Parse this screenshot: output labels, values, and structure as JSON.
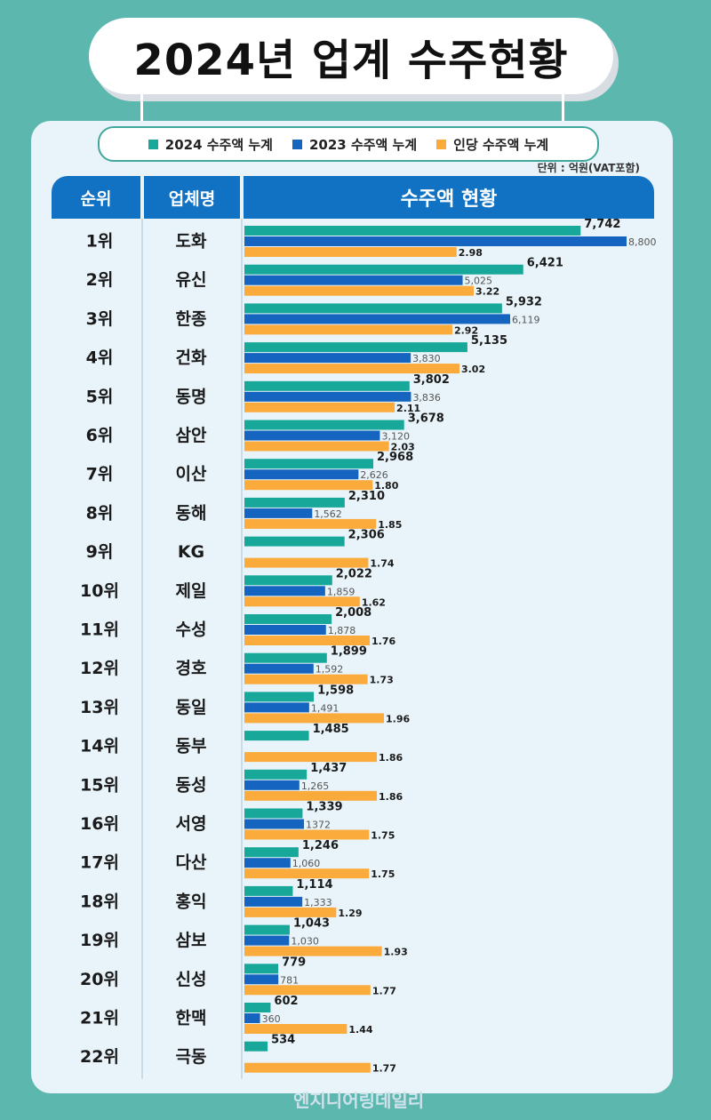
{
  "title": "2024년 업계 수주현황",
  "legend": {
    "s2024": "2024 수주액 누계",
    "s2023": "2023 수주액 누계",
    "per": "인당 수주액 누계"
  },
  "unit_label": "단위 : 억원(VAT포함)",
  "headers": {
    "rank": "순위",
    "name": "업체명",
    "amount": "수주액 현황"
  },
  "watermark": "엔지니어링데일리",
  "colors": {
    "s2024": "#17a89a",
    "s2023": "#1565c0",
    "per": "#fbab3c",
    "header": "#1172c4",
    "background": "#5cb8ae",
    "panel": "#e8f4fa"
  },
  "chart_data": {
    "type": "bar",
    "orientation": "horizontal",
    "title": "수주액 현황",
    "unit": "억원(VAT포함)",
    "categories": [
      "도화",
      "유신",
      "한종",
      "건화",
      "동명",
      "삼안",
      "이산",
      "동해",
      "KG",
      "제일",
      "수성",
      "경호",
      "동일",
      "동부",
      "동성",
      "서영",
      "다산",
      "홍익",
      "삼보",
      "신성",
      "한맥",
      "극동"
    ],
    "ranks": [
      "1위",
      "2위",
      "3위",
      "4위",
      "5위",
      "6위",
      "7위",
      "8위",
      "9위",
      "10위",
      "11위",
      "12위",
      "13위",
      "14위",
      "15위",
      "16위",
      "17위",
      "18위",
      "19위",
      "20위",
      "21위",
      "22위"
    ],
    "series": [
      {
        "name": "2024 수주액 누계",
        "values": [
          7742,
          6421,
          5932,
          5135,
          3802,
          3678,
          2968,
          2310,
          2306,
          2022,
          2008,
          1899,
          1598,
          1485,
          1437,
          1339,
          1246,
          1114,
          1043,
          779,
          602,
          534
        ],
        "labels": [
          "7,742",
          "6,421",
          "5,932",
          "5,135",
          "3,802",
          "3,678",
          "2,968",
          "2,310",
          "2,306",
          "2,022",
          "2,008",
          "1,899",
          "1,598",
          "1,485",
          "1,437",
          "1,339",
          "1,246",
          "1,114",
          "1,043",
          "779",
          "602",
          "534"
        ]
      },
      {
        "name": "2023 수주액 누계",
        "values": [
          8800,
          5025,
          6119,
          3830,
          3836,
          3120,
          2626,
          1562,
          null,
          1859,
          1878,
          1592,
          1491,
          null,
          1265,
          1372,
          1060,
          1333,
          1030,
          781,
          360,
          null
        ],
        "labels": [
          "8,800",
          "5,025",
          "6,119",
          "3,830",
          "3,836",
          "3,120",
          "2,626",
          "1,562",
          "",
          "1,859",
          "1,878",
          "1,592",
          "1,491",
          "",
          "1,265",
          "1372",
          "1,060",
          "1,333",
          "1,030",
          "781",
          "360",
          ""
        ]
      },
      {
        "name": "인당 수주액 누계",
        "values": [
          2.98,
          3.22,
          2.92,
          3.02,
          2.11,
          2.03,
          1.8,
          1.85,
          1.74,
          1.62,
          1.76,
          1.73,
          1.96,
          1.86,
          1.86,
          1.75,
          1.75,
          1.29,
          1.93,
          1.77,
          1.44,
          1.77
        ],
        "labels": [
          "2.98",
          "3.22",
          "2.92",
          "3.02",
          "2.11",
          "2.03",
          "1.80",
          "1.85",
          "1.74",
          "1.62",
          "1.76",
          "1.73",
          "1.96",
          "1.86",
          "1.86",
          "1.75",
          "1.75",
          "1.29",
          "1.93",
          "1.77",
          "1.44",
          "1.77"
        ]
      }
    ]
  }
}
